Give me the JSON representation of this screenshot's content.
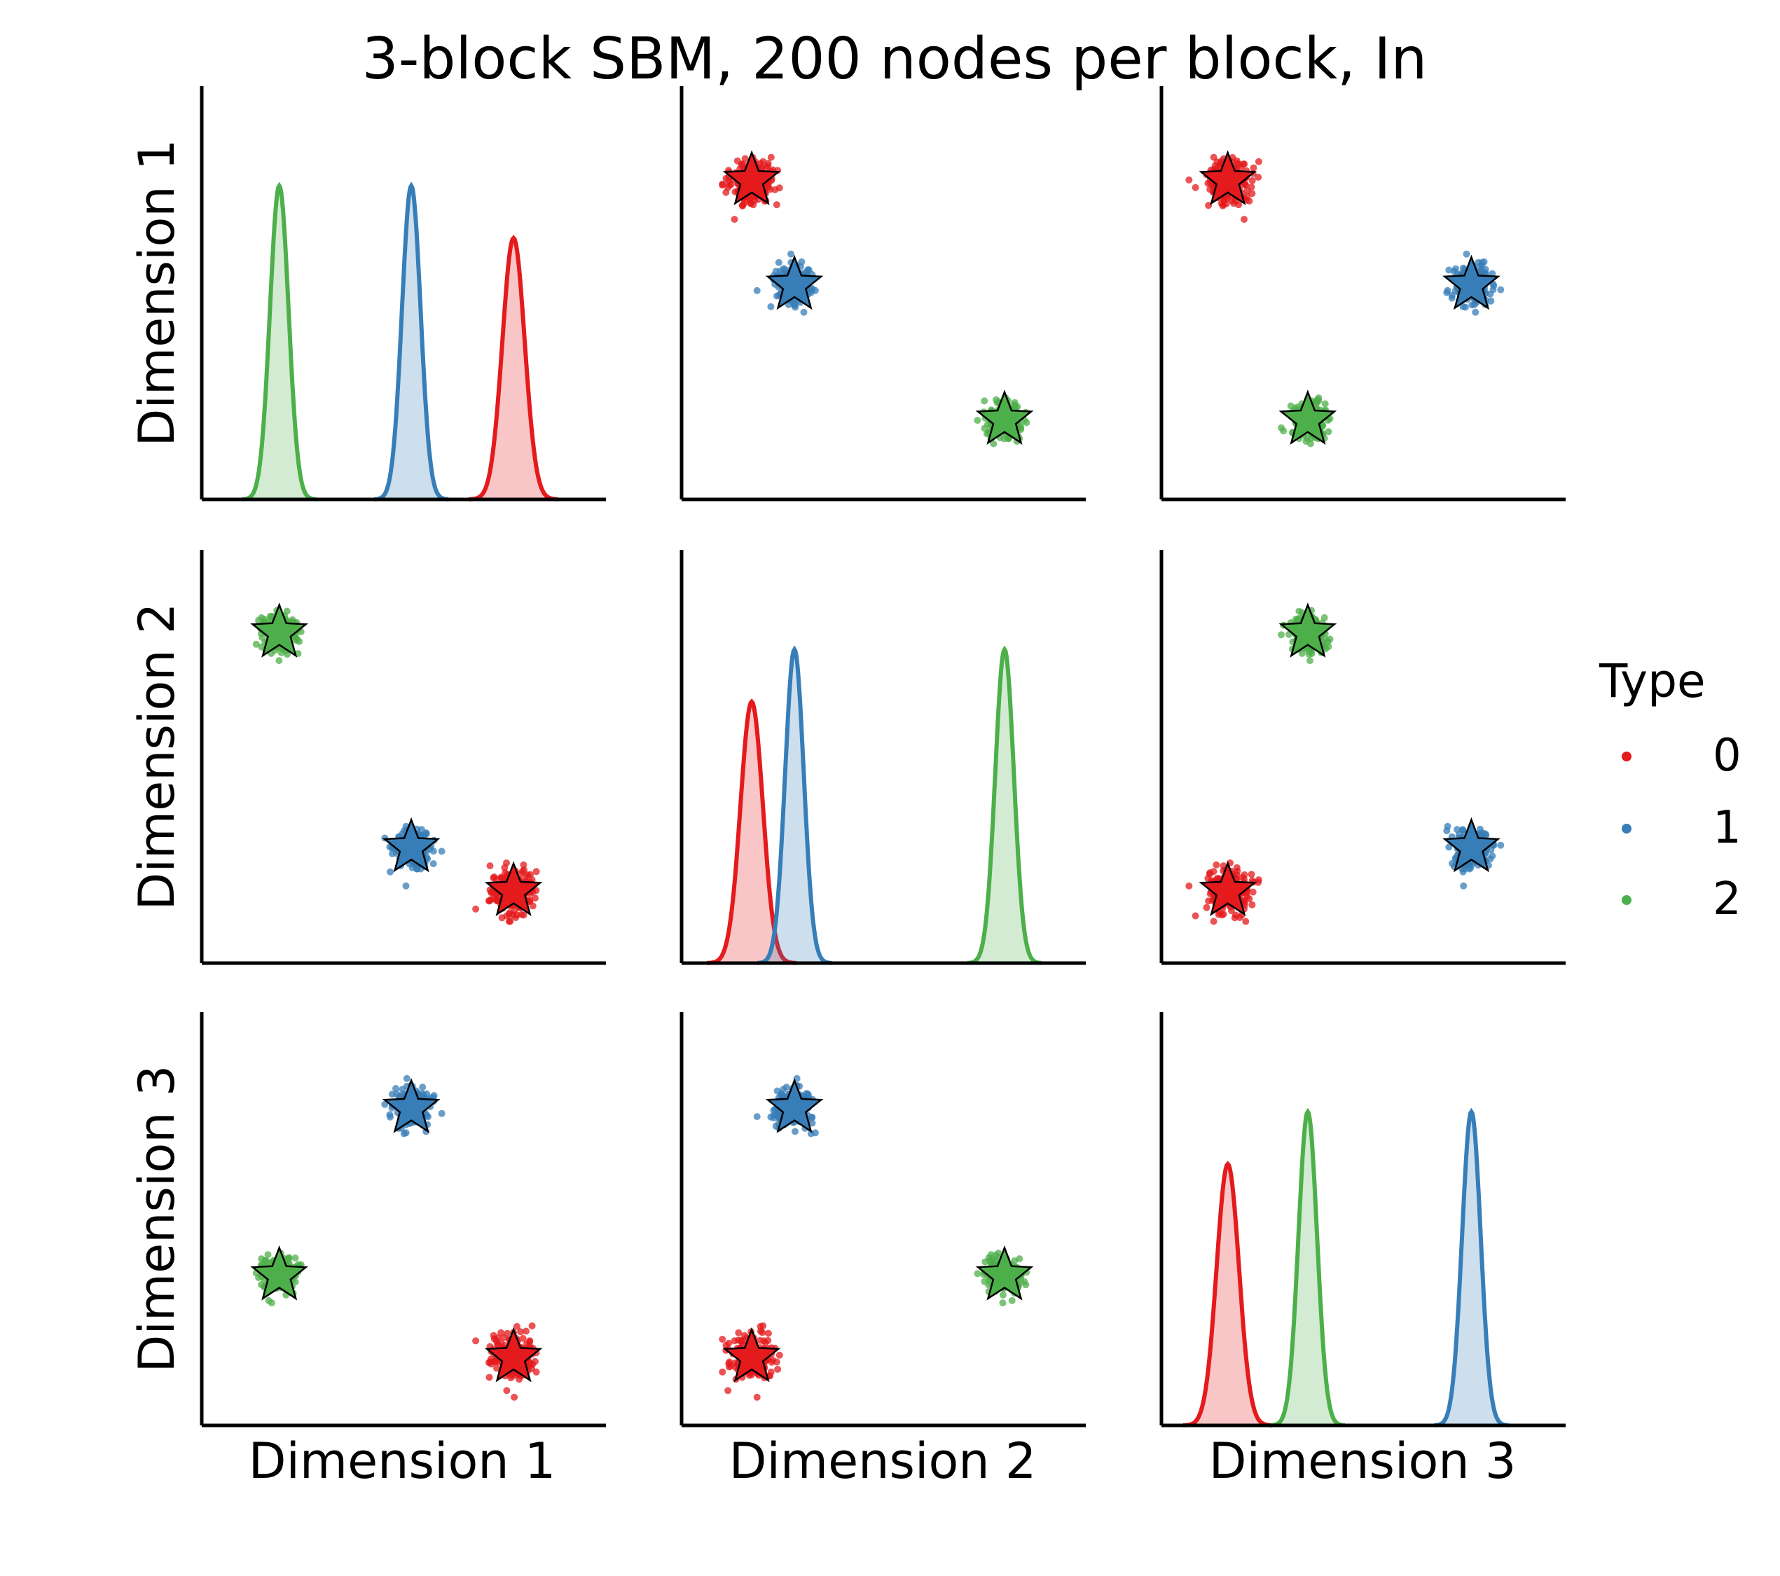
{
  "chart_data": {
    "type": "pairplot",
    "title": "3-block SBM, 200 nodes per block, In",
    "variables": [
      "Dimension 1",
      "Dimension 2",
      "Dimension 3"
    ],
    "grid": false,
    "legend": {
      "title": "Type",
      "placement": "right",
      "entries": [
        {
          "label": "0",
          "color": "#e41a1c"
        },
        {
          "label": "1",
          "color": "#377eb8"
        },
        {
          "label": "2",
          "color": "#4daf4a"
        }
      ]
    },
    "series": [
      {
        "label": "0",
        "color": "#e41a1c",
        "center": {
          "Dimension 1": 0.795,
          "Dimension 2": 0.145,
          "Dimension 3": 0.135
        },
        "spread": 0.03,
        "points_per_block": 200,
        "marker_center": "star"
      },
      {
        "label": "1",
        "color": "#377eb8",
        "center": {
          "Dimension 1": 0.52,
          "Dimension 2": 0.26,
          "Dimension 3": 0.79
        },
        "spread": 0.025,
        "points_per_block": 200,
        "marker_center": "star"
      },
      {
        "label": "2",
        "color": "#4daf4a",
        "center": {
          "Dimension 1": 0.165,
          "Dimension 2": 0.825,
          "Dimension 3": 0.35
        },
        "spread": 0.025,
        "points_per_block": 200,
        "marker_center": "star"
      }
    ],
    "diagonal": "kde",
    "off_diagonal": "scatter"
  }
}
